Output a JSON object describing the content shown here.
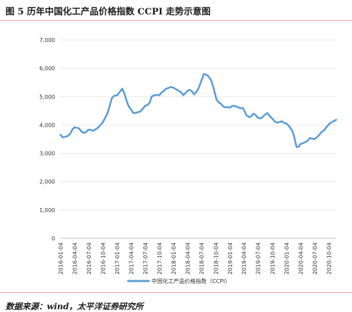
{
  "figure": {
    "title": "图 5 历年中国化工产品价格指数 CCPI 走势示意图",
    "source": "数据来源：wind，太平洋证券研究所"
  },
  "chart_data": {
    "type": "line",
    "ylim": [
      0,
      7000
    ],
    "yticks": [
      "0",
      "1,000",
      "2,000",
      "3,000",
      "4,000",
      "5,000",
      "6,000",
      "7,000"
    ],
    "yticks_values": [
      0,
      1000,
      2000,
      3000,
      4000,
      5000,
      6000,
      7000
    ],
    "x_tick_labels": [
      "2016-01-04",
      "2016-04-04",
      "2016-07-04",
      "2016-10-04",
      "2017-01-04",
      "2017-04-04",
      "2017-07-04",
      "2017-10-04",
      "2018-01-04",
      "2018-04-04",
      "2018-07-04",
      "2018-10-04",
      "2019-01-04",
      "2019-04-04",
      "2019-07-04",
      "2019-10-04",
      "2020-01-04",
      "2020-04-04",
      "2020-07-04",
      "2020-10-04"
    ],
    "legend_position": "bottom",
    "grid": "horizontal",
    "series": [
      {
        "name": "中国化工产品价格指数（CCPI）",
        "color": "#5b9bd5",
        "x": [
          "2016-01-04",
          "2016-01-18",
          "2016-02-01",
          "2016-02-22",
          "2016-03-07",
          "2016-03-21",
          "2016-04-04",
          "2016-04-18",
          "2016-05-02",
          "2016-05-16",
          "2016-06-01",
          "2016-06-15",
          "2016-07-01",
          "2016-07-18",
          "2016-08-01",
          "2016-08-15",
          "2016-09-01",
          "2016-09-15",
          "2016-10-04",
          "2016-10-18",
          "2016-11-01",
          "2016-11-15",
          "2016-12-01",
          "2016-12-15",
          "2017-01-04",
          "2017-01-18",
          "2017-02-06",
          "2017-02-20",
          "2017-03-06",
          "2017-03-20",
          "2017-04-04",
          "2017-04-18",
          "2017-05-02",
          "2017-05-16",
          "2017-06-01",
          "2017-06-15",
          "2017-07-04",
          "2017-07-18",
          "2017-08-01",
          "2017-08-15",
          "2017-09-01",
          "2017-09-15",
          "2017-10-04",
          "2017-10-18",
          "2017-11-01",
          "2017-11-15",
          "2017-12-01",
          "2017-12-15",
          "2018-01-04",
          "2018-01-18",
          "2018-02-01",
          "2018-02-22",
          "2018-03-07",
          "2018-03-21",
          "2018-04-04",
          "2018-04-18",
          "2018-05-02",
          "2018-05-16",
          "2018-06-01",
          "2018-06-15",
          "2018-07-04",
          "2018-07-18",
          "2018-08-01",
          "2018-08-15",
          "2018-09-03",
          "2018-09-17",
          "2018-10-08",
          "2018-10-22",
          "2018-11-05",
          "2018-11-19",
          "2018-12-03",
          "2018-12-17",
          "2019-01-04",
          "2019-01-18",
          "2019-02-11",
          "2019-02-25",
          "2019-03-11",
          "2019-03-25",
          "2019-04-04",
          "2019-04-18",
          "2019-05-06",
          "2019-05-20",
          "2019-06-03",
          "2019-06-17",
          "2019-07-04",
          "2019-07-18",
          "2019-08-01",
          "2019-08-15",
          "2019-09-02",
          "2019-09-16",
          "2019-10-08",
          "2019-10-22",
          "2019-11-05",
          "2019-11-19",
          "2019-12-03",
          "2019-12-17",
          "2020-01-03",
          "2020-01-17",
          "2020-02-10",
          "2020-02-24",
          "2020-03-09",
          "2020-03-23",
          "2020-04-03",
          "2020-04-17",
          "2020-05-06",
          "2020-05-20",
          "2020-06-03",
          "2020-06-17",
          "2020-07-03",
          "2020-07-17",
          "2020-08-03",
          "2020-08-17",
          "2020-09-01",
          "2020-09-15",
          "2020-10-09",
          "2020-10-23",
          "2020-11-06",
          "2020-11-20"
        ],
        "values": [
          3650,
          3560,
          3580,
          3620,
          3700,
          3850,
          3920,
          3900,
          3880,
          3780,
          3720,
          3740,
          3830,
          3830,
          3790,
          3840,
          3900,
          3980,
          4100,
          4250,
          4400,
          4650,
          4950,
          5030,
          5050,
          5150,
          5280,
          5100,
          4850,
          4650,
          4540,
          4420,
          4420,
          4450,
          4470,
          4550,
          4680,
          4700,
          4780,
          5000,
          5050,
          5060,
          5050,
          5150,
          5200,
          5280,
          5300,
          5340,
          5310,
          5260,
          5220,
          5150,
          5050,
          5120,
          5210,
          5240,
          5190,
          5080,
          5170,
          5300,
          5580,
          5800,
          5780,
          5730,
          5580,
          5350,
          4900,
          4800,
          4750,
          4660,
          4620,
          4630,
          4610,
          4680,
          4660,
          4620,
          4590,
          4600,
          4530,
          4350,
          4280,
          4300,
          4400,
          4360,
          4250,
          4230,
          4270,
          4350,
          4420,
          4320,
          4200,
          4110,
          4080,
          4100,
          4130,
          4080,
          4050,
          3980,
          3800,
          3550,
          3220,
          3230,
          3330,
          3350,
          3400,
          3450,
          3540,
          3520,
          3500,
          3560,
          3650,
          3750,
          3800,
          3900,
          4050,
          4100,
          4140,
          4180
        ]
      }
    ]
  }
}
